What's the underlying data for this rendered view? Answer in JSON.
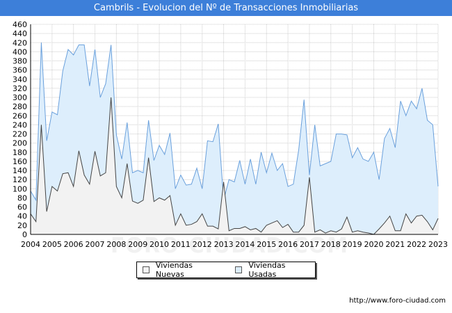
{
  "title": "Cambrils - Evolucion del Nº de Transacciones Inmobiliarias",
  "watermark": "FORO-CIUDAD.COM",
  "footer": "http://www.foro-ciudad.com",
  "colors": {
    "titlebar": "#3d7fd9",
    "nuevas_fill": "#f2f2f2",
    "nuevas_line": "#444444",
    "usadas_fill": "#ddeefc",
    "usadas_line": "#6aa0dc",
    "grid": "#cccccc"
  },
  "chart_data": {
    "type": "area",
    "title": "Cambrils - Evolucion del Nº de Transacciones Inmobiliarias",
    "xlabel": "",
    "ylabel": "",
    "ylim": [
      0,
      460
    ],
    "yticks": [
      0,
      20,
      40,
      60,
      80,
      100,
      120,
      140,
      160,
      180,
      200,
      220,
      240,
      260,
      280,
      300,
      320,
      340,
      360,
      380,
      400,
      420,
      440,
      460
    ],
    "xticks": [
      "2004",
      "2005",
      "2006",
      "2007",
      "2008",
      "2009",
      "2010",
      "2011",
      "2012",
      "2013",
      "2014",
      "2015",
      "2016",
      "2017",
      "2018",
      "2019",
      "2020",
      "2021",
      "2022",
      "2023"
    ],
    "x_start": "2004 Q1",
    "x_end": "2023 Q1",
    "grid": true,
    "legend_position": "bottom",
    "series": [
      {
        "name": "Viviendas Nuevas",
        "values": [
          45,
          28,
          240,
          50,
          105,
          95,
          133,
          135,
          105,
          183,
          130,
          110,
          182,
          128,
          135,
          300,
          105,
          80,
          155,
          73,
          68,
          75,
          168,
          72,
          80,
          75,
          85,
          20,
          45,
          20,
          22,
          28,
          45,
          18,
          18,
          12,
          115,
          8,
          13,
          13,
          17,
          10,
          13,
          5,
          20,
          25,
          30,
          15,
          22,
          5,
          5,
          20,
          125,
          5,
          10,
          3,
          8,
          5,
          12,
          38,
          5,
          8,
          5,
          3,
          0,
          12,
          25,
          40,
          8,
          8,
          45,
          25,
          40,
          42,
          28,
          10,
          35
        ]
      },
      {
        "name": "Viviendas Usadas",
        "values": [
          95,
          75,
          420,
          205,
          268,
          262,
          358,
          405,
          393,
          415,
          415,
          325,
          405,
          300,
          330,
          415,
          218,
          165,
          245,
          135,
          140,
          135,
          250,
          162,
          195,
          175,
          222,
          100,
          130,
          108,
          110,
          145,
          100,
          205,
          203,
          242,
          75,
          120,
          115,
          162,
          110,
          165,
          110,
          180,
          135,
          178,
          140,
          155,
          105,
          110,
          185,
          295,
          130,
          240,
          150,
          155,
          160,
          220,
          220,
          218,
          168,
          190,
          165,
          160,
          180,
          120,
          210,
          232,
          190,
          292,
          260,
          292,
          275,
          320,
          250,
          240,
          105
        ]
      }
    ]
  },
  "legend": [
    {
      "label": "Viviendas Nuevas"
    },
    {
      "label": "Viviendas Usadas"
    }
  ]
}
